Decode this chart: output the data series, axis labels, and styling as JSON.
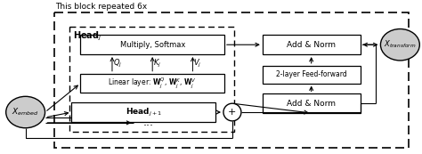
{
  "bg_color": "#ffffff",
  "title_text": "This block repeated 6x",
  "head_j_label": "Head$_\\mathbf{j}$",
  "multiply_softmax_text": "Multiply, Softmax",
  "linear_layer_text": "Linear layer: $\\mathbf{W}^Q_j$, $\\mathbf{W}^K_j$, $\\mathbf{W}^V_j$",
  "head_j1_text": "$\\mathbf{Head}_{j+1}$",
  "add_norm_top_text": "Add & Norm",
  "feed_forward_text": "2-layer Feed-forward",
  "add_norm_bot_text": "Add & Norm",
  "x_embed_text": "$X_{embed}$",
  "x_transform_text": "$X_{transform}$",
  "q_label": "$Q_j$",
  "k_label": "$K_j$",
  "v_label": "$V_j$",
  "dots_text": "..."
}
